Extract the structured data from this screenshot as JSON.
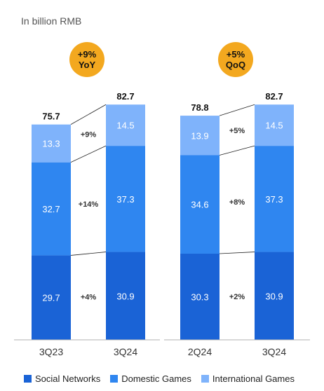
{
  "unit_label": "In billion RMB",
  "colors": {
    "social_networks": "#1a63d6",
    "domestic_games": "#2f86f0",
    "international_games": "#7fb3fb",
    "badge": "#f3a81f",
    "connector": "#222222",
    "axis": "#b0b0b0"
  },
  "chart_data": [
    {
      "type": "bar",
      "stacked": true,
      "categories": [
        "3Q23",
        "3Q24"
      ],
      "series": [
        {
          "name": "Social Networks",
          "values": [
            29.7,
            30.9
          ]
        },
        {
          "name": "Domestic Games",
          "values": [
            32.7,
            37.3
          ]
        },
        {
          "name": "International Games",
          "values": [
            13.3,
            14.5
          ]
        }
      ],
      "totals": [
        "75.7",
        "82.7"
      ],
      "growth_labels": [
        "+4%",
        "+14%",
        "+9%"
      ],
      "badge": {
        "line1": "+9%",
        "line2": "YoY"
      }
    },
    {
      "type": "bar",
      "stacked": true,
      "categories": [
        "2Q24",
        "3Q24"
      ],
      "series": [
        {
          "name": "Social Networks",
          "values": [
            30.3,
            30.9
          ]
        },
        {
          "name": "Domestic Games",
          "values": [
            34.6,
            37.3
          ]
        },
        {
          "name": "International Games",
          "values": [
            13.9,
            14.5
          ]
        }
      ],
      "totals": [
        "78.8",
        "82.7"
      ],
      "growth_labels": [
        "+2%",
        "+8%",
        "+5%"
      ],
      "badge": {
        "line1": "+5%",
        "line2": "QoQ"
      }
    }
  ],
  "legend": [
    {
      "label": "Social Networks",
      "color": "#1a63d6"
    },
    {
      "label": "Domestic Games",
      "color": "#2f86f0"
    },
    {
      "label": "International Games",
      "color": "#7fb3fb"
    }
  ]
}
